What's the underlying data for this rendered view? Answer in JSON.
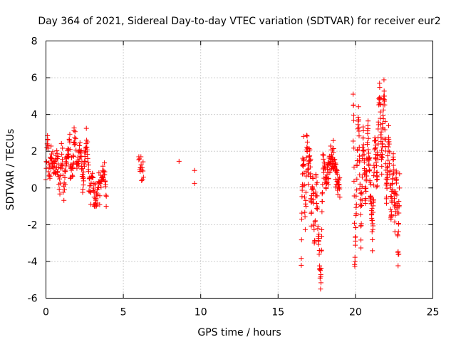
{
  "chart_data": {
    "type": "scatter",
    "title": "Day 364 of 2021, Sidereal Day-to-day VTEC variation (SDTVAR) for receiver eur2",
    "xlabel": "GPS time / hours",
    "ylabel": "SDTVAR / TECUs",
    "xlim": [
      0,
      25
    ],
    "ylim": [
      -6,
      8
    ],
    "xticks": [
      0,
      5,
      10,
      15,
      20,
      25
    ],
    "yticks": [
      -6,
      -4,
      -2,
      0,
      2,
      4,
      6,
      8
    ],
    "grid": true,
    "marker": "plus",
    "color": "#ff0000",
    "clusters": [
      {
        "name": "early-block",
        "x_start": 0.0,
        "x_end": 3.9,
        "step": 0.02,
        "y_min": -1.0,
        "y_max": 3.3,
        "path": [
          [
            0.0,
            1.0
          ],
          [
            0.1,
            2.5
          ],
          [
            0.2,
            0.5
          ],
          [
            0.35,
            1.8
          ],
          [
            0.5,
            0.8
          ],
          [
            0.7,
            1.6
          ],
          [
            0.9,
            0.2
          ],
          [
            1.0,
            2.2
          ],
          [
            1.15,
            -0.5
          ],
          [
            1.3,
            1.2
          ],
          [
            1.5,
            2.3
          ],
          [
            1.7,
            0.8
          ],
          [
            1.85,
            3.2
          ],
          [
            2.0,
            1.0
          ],
          [
            2.2,
            2.0
          ],
          [
            2.4,
            0.3
          ],
          [
            2.6,
            2.5
          ],
          [
            2.8,
            0.0
          ],
          [
            3.0,
            0.5
          ],
          [
            3.2,
            -0.9
          ],
          [
            3.4,
            -0.2
          ],
          [
            3.6,
            0.5
          ],
          [
            3.8,
            1.0
          ],
          [
            3.9,
            -0.2
          ]
        ]
      },
      {
        "name": "cluster-6h",
        "x_start": 6.0,
        "x_end": 6.3,
        "step": 0.03,
        "y_min": 0.3,
        "y_max": 1.7,
        "path": [
          [
            6.0,
            1.6
          ],
          [
            6.1,
            0.6
          ],
          [
            6.2,
            0.9
          ],
          [
            6.3,
            0.5
          ]
        ]
      },
      {
        "name": "cluster-16to19h",
        "x_start": 16.5,
        "x_end": 19.0,
        "step": 0.015,
        "y_min": -5.5,
        "y_max": 3.1,
        "path": [
          [
            16.5,
            -4.0
          ],
          [
            16.55,
            -0.5
          ],
          [
            16.65,
            2.5
          ],
          [
            16.75,
            -2.5
          ],
          [
            16.85,
            3.0
          ],
          [
            16.95,
            0.5
          ],
          [
            17.05,
            2.3
          ],
          [
            17.15,
            -1.5
          ],
          [
            17.25,
            1.0
          ],
          [
            17.35,
            -3.5
          ],
          [
            17.45,
            0.5
          ],
          [
            17.55,
            -1.5
          ],
          [
            17.65,
            -3.0
          ],
          [
            17.75,
            -5.4
          ],
          [
            17.9,
            1.5
          ],
          [
            18.1,
            0.5
          ],
          [
            18.3,
            1.2
          ],
          [
            18.5,
            1.7
          ],
          [
            18.7,
            1.0
          ],
          [
            18.9,
            0.0
          ],
          [
            19.0,
            -0.2
          ]
        ]
      },
      {
        "name": "cluster-20to23h",
        "x_start": 19.85,
        "x_end": 22.85,
        "step": 0.012,
        "y_min": -4.3,
        "y_max": 6.0,
        "path": [
          [
            19.85,
            5.5
          ],
          [
            19.9,
            2.6
          ],
          [
            19.95,
            -4.2
          ],
          [
            20.05,
            -1.0
          ],
          [
            20.2,
            4.6
          ],
          [
            20.35,
            -3.0
          ],
          [
            20.5,
            3.4
          ],
          [
            20.65,
            -0.8
          ],
          [
            20.8,
            3.0
          ],
          [
            20.95,
            0.0
          ],
          [
            21.1,
            -2.5
          ],
          [
            21.25,
            2.7
          ],
          [
            21.4,
            0.5
          ],
          [
            21.55,
            5.5
          ],
          [
            21.7,
            1.5
          ],
          [
            21.85,
            5.9
          ],
          [
            22.0,
            -0.5
          ],
          [
            22.15,
            3.0
          ],
          [
            22.3,
            -1.5
          ],
          [
            22.45,
            1.5
          ],
          [
            22.55,
            -2.0
          ],
          [
            22.65,
            1.0
          ],
          [
            22.75,
            -4.0
          ],
          [
            22.85,
            0.3
          ]
        ]
      }
    ],
    "isolated_points": [
      {
        "x": 8.6,
        "y": 1.45
      },
      {
        "x": 9.6,
        "y": 0.95
      },
      {
        "x": 9.6,
        "y": 0.25
      },
      {
        "x": 19.85,
        "y": 2.55
      },
      {
        "x": 22.8,
        "y": -3.6
      }
    ]
  }
}
